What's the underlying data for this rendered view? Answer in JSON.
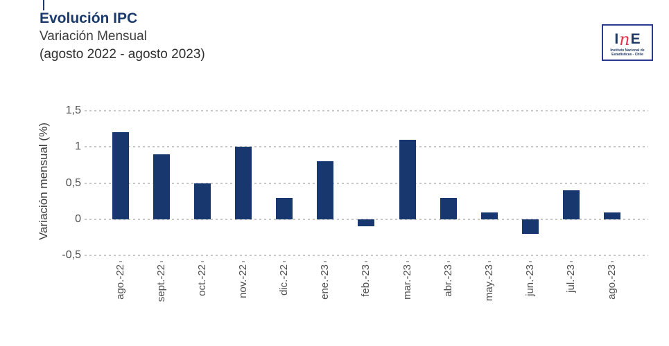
{
  "header": {
    "title": "Evolución IPC",
    "subtitle": "Variación Mensual",
    "period": "(agosto 2022 - agosto 2023)"
  },
  "logo": {
    "letter_i": "I",
    "letter_n": "n",
    "letter_e": "E",
    "caption_line1": "Instituto Nacional de",
    "caption_line2": "Estadísticas - Chile"
  },
  "colors": {
    "bar": "#17376E",
    "title_navy": "#1A3A6B",
    "grid": "#c6c6c6",
    "axis_text": "#4d4d4d",
    "logo_border_blue": "#2B3990",
    "logo_red": "#E4354F",
    "logo_navy": "#1F3864"
  },
  "chart_data": {
    "type": "bar",
    "title": "Evolución IPC — Variación Mensual (agosto 2022 - agosto 2023)",
    "categories": [
      "ago.-22",
      "sept.-22",
      "oct.-22",
      "nov.-22",
      "dic.-22",
      "ene.-23",
      "feb.-23",
      "mar.-23",
      "abr.-23",
      "may.-23",
      "jun.-23",
      "jul.-23",
      "ago.-23"
    ],
    "values": [
      1.2,
      0.9,
      0.5,
      1.0,
      0.3,
      0.8,
      -0.1,
      1.1,
      0.3,
      0.1,
      -0.2,
      0.4,
      0.1
    ],
    "xlabel": "",
    "ylabel": "Variación mensual (%)",
    "ylim": [
      -0.5,
      1.5
    ],
    "yticks": [
      1.5,
      1,
      0.5,
      0,
      -0.5
    ],
    "ytick_labels": [
      "1,5",
      "1",
      "0,5",
      "0",
      "-0,5"
    ],
    "grid": "horizontal dashed",
    "legend": "none",
    "bar_color": "#17376E"
  }
}
